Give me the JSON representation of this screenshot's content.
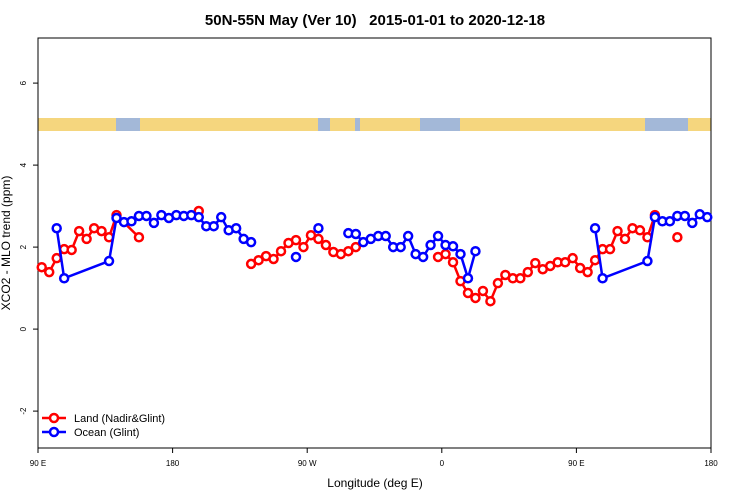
{
  "chart_data": {
    "type": "line",
    "title": "50N-55N May (Ver 10)   2015-01-01 to 2020-12-18",
    "x_label": "Longitude (deg E)",
    "y_label": "XCO2 - MLO trend (ppm)",
    "xlim": [
      90,
      540
    ],
    "ylim": [
      -2.9,
      7.1
    ],
    "xticks": [
      {
        "value": 90,
        "label": "90 E"
      },
      180,
      {
        "value": 270,
        "label": "90 W"
      },
      {
        "value": 360,
        "label": "0"
      },
      {
        "value": 450,
        "label": "90 E"
      },
      {
        "value": 540,
        "label": "180"
      }
    ],
    "yticks": [
      -2,
      0,
      2,
      4,
      6
    ],
    "legend": "bottom-left",
    "series": [
      {
        "name": "Land (Nadir&Glint)",
        "color": "#ff0000",
        "x": [
          92.5,
          97.5,
          102.5,
          107.5,
          112.5,
          117.5,
          122.5,
          127.5,
          132.5,
          137.5,
          142.5,
          157.5,
          177.5,
          197.5,
          217.5,
          232.5,
          237.5,
          242.5,
          247.5,
          252.5,
          257.5,
          262.5,
          267.5,
          272.5,
          277.5,
          282.5,
          287.5,
          292.5,
          297.5,
          302.5,
          330,
          357.5,
          362.5,
          367.5,
          372.5,
          377.5,
          382.5,
          387.5,
          392.5,
          397.5,
          402.5,
          407.5,
          412.5,
          417.5,
          422.5,
          427.5,
          432.5,
          437.5,
          442.5,
          447.5,
          452.5,
          457.5,
          462.5,
          467.5,
          472.5,
          477.5,
          482.5,
          487.5,
          492.5,
          497.5,
          502.5,
          510,
          517.5
        ],
        "values": [
          1.51,
          1.39,
          1.73,
          1.95,
          1.93,
          2.39,
          2.2,
          2.46,
          2.39,
          2.24,
          2.78,
          2.24,
          null,
          2.88,
          null,
          1.59,
          1.68,
          1.78,
          1.71,
          1.9,
          2.1,
          2.17,
          2.0,
          2.29,
          2.2,
          2.05,
          1.88,
          1.83,
          1.9,
          2.0,
          null,
          1.76,
          1.83,
          1.63,
          1.17,
          0.88,
          0.76,
          0.93,
          0.68,
          1.12,
          1.32,
          1.24,
          1.24,
          1.39,
          1.61,
          1.46,
          1.54,
          1.63,
          1.63,
          1.73,
          1.49,
          1.39,
          1.68,
          1.95,
          1.95,
          2.39,
          2.2,
          2.46,
          2.41,
          2.24,
          2.78,
          null,
          2.24
        ]
      },
      {
        "name": "Ocean (Glint)",
        "color": "#0000ff",
        "x": [
          102.5,
          107.5,
          137.5,
          142.5,
          147.5,
          152.5,
          157.5,
          162.5,
          167.5,
          172.5,
          177.5,
          182.5,
          187.5,
          192.5,
          197.5,
          202.5,
          207.5,
          212.5,
          217.5,
          222.5,
          227.5,
          232.5,
          247.5,
          262.5,
          267.5,
          277.5,
          285,
          297.5,
          302.5,
          307.5,
          312.5,
          317.5,
          322.5,
          327.5,
          332.5,
          337.5,
          342.5,
          347.5,
          352.5,
          357.5,
          362.5,
          367.5,
          372.5,
          377.5,
          382.5,
          420,
          462.5,
          467.5,
          497.5,
          502.5,
          507.5,
          512.5,
          517.5,
          522.5,
          527.5,
          532.5,
          537.5
        ],
        "values": [
          2.46,
          1.24,
          1.66,
          2.71,
          2.61,
          2.63,
          2.76,
          2.76,
          2.59,
          2.78,
          2.71,
          2.78,
          2.76,
          2.78,
          2.73,
          2.51,
          2.51,
          2.73,
          2.41,
          2.46,
          2.2,
          2.12,
          null,
          1.76,
          null,
          2.46,
          null,
          2.34,
          2.32,
          2.12,
          2.2,
          2.27,
          2.27,
          2.0,
          2.0,
          2.27,
          1.83,
          1.76,
          2.05,
          2.27,
          2.05,
          2.02,
          1.83,
          1.24,
          1.9,
          null,
          2.46,
          1.24,
          1.66,
          2.73,
          2.63,
          2.63,
          2.76,
          2.76,
          2.59,
          2.8,
          2.73
        ]
      }
    ]
  }
}
